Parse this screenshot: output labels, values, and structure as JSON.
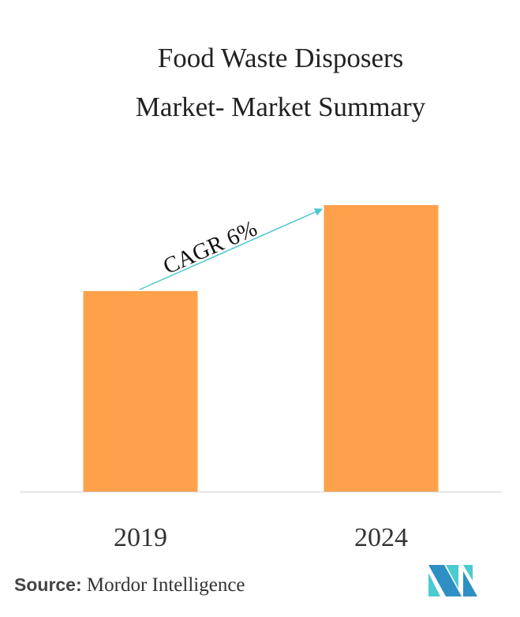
{
  "title_line1": "Food Waste Disposers",
  "title_line2": "Market- Market Summary",
  "chart_data": {
    "type": "bar",
    "title": "Food Waste Disposers Market- Market Summary",
    "categories": [
      "2019",
      "2024"
    ],
    "values": [
      0.7,
      1.0
    ],
    "value_note_scale": "relative",
    "annotation": "CAGR 6%",
    "bar_color": "#FFA04A",
    "arrow_color": "#4CC7CE",
    "grid": false,
    "y_axis_shown": false
  },
  "source": {
    "label": "Source:",
    "text": "Mordor Intelligence"
  },
  "logo": {
    "colors": [
      "#2E8FC4",
      "#4BCACF"
    ]
  }
}
